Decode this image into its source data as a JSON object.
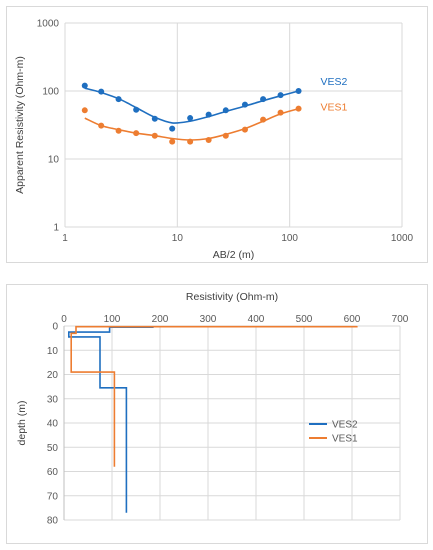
{
  "colors": {
    "VES2": "#1f6fc0",
    "VES1": "#ed7d31",
    "grid": "#d9d9d9",
    "text": "#595959"
  },
  "chart_data": [
    {
      "type": "scatter",
      "x_scale": "log",
      "y_scale": "log",
      "xlabel": "AB/2 (m)",
      "ylabel": "Apparent Resistivity (Ohm-m)",
      "xlim": [
        1,
        1000
      ],
      "ylim": [
        1,
        1000
      ],
      "x_ticks": [
        "1",
        "10",
        "100",
        "1000"
      ],
      "y_ticks": [
        "1",
        "10",
        "100",
        "1000"
      ],
      "grid": true,
      "series": [
        {
          "name": "VES2",
          "points_x": [
            1.5,
            2.1,
            3.0,
            4.3,
            6.3,
            9.0,
            13.0,
            19.0,
            27.0,
            40.0,
            58.0,
            83.0,
            120.0
          ],
          "points_y": [
            120,
            98,
            76,
            53,
            39,
            28,
            40,
            45,
            52,
            63,
            76,
            87,
            100
          ],
          "curve_x": [
            1.5,
            2.1,
            3.0,
            4.3,
            6.3,
            9.0,
            13.0,
            19.0,
            27.0,
            40.0,
            58.0,
            83.0,
            120.0
          ],
          "curve_y": [
            110,
            95,
            77,
            57,
            41,
            34,
            36,
            42,
            50,
            60,
            72,
            85,
            100
          ]
        },
        {
          "name": "VES1",
          "points_x": [
            1.5,
            2.1,
            3.0,
            4.3,
            6.3,
            9.0,
            13.0,
            19.0,
            27.0,
            40.0,
            58.0,
            83.0,
            120.0
          ],
          "points_y": [
            52,
            31,
            26,
            24,
            22,
            18,
            18,
            19,
            22,
            27,
            38,
            48,
            55
          ],
          "curve_x": [
            1.5,
            2.1,
            3.0,
            4.3,
            6.3,
            9.0,
            13.0,
            19.0,
            27.0,
            40.0,
            58.0,
            83.0,
            120.0
          ],
          "curve_y": [
            40,
            31,
            27,
            24,
            22,
            20,
            19,
            20,
            23,
            28,
            36,
            46,
            55
          ]
        }
      ]
    },
    {
      "type": "line",
      "title": "Resistivity (Ohm-m)",
      "ylabel": "depth (m)",
      "xlim": [
        0,
        700
      ],
      "ylim": [
        0,
        80
      ],
      "y_inverted": true,
      "x_axis_position": "top",
      "x_ticks": [
        "0",
        "100",
        "200",
        "300",
        "400",
        "500",
        "600",
        "700"
      ],
      "y_ticks": [
        "0",
        "10",
        "20",
        "30",
        "40",
        "50",
        "60",
        "70",
        "80"
      ],
      "grid": true,
      "legend": "right",
      "series": [
        {
          "name": "VES2",
          "resistivity": [
            185,
            185,
            95,
            95,
            10,
            10,
            75,
            75,
            130,
            130
          ],
          "depth": [
            0,
            0.5,
            0.5,
            2.5,
            2.5,
            4.5,
            4.5,
            25.5,
            25.5,
            77
          ]
        },
        {
          "name": "VES1",
          "resistivity": [
            610,
            610,
            25,
            25,
            15,
            15,
            105,
            105
          ],
          "depth": [
            0,
            0.3,
            0.3,
            3,
            3,
            19,
            19,
            58
          ]
        }
      ]
    }
  ]
}
